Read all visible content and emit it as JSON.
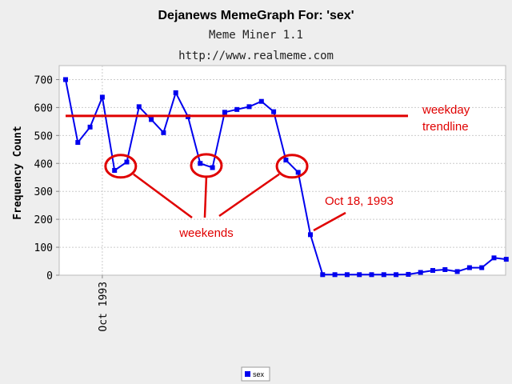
{
  "chart_data": {
    "type": "line",
    "title": "Dejanews MemeGraph For: 'sex'",
    "subtitle": "Meme Miner 1.1",
    "url": "http://www.realmeme.com",
    "ylabel": "Frequency Count",
    "xlabel": "",
    "ylim": [
      0,
      750
    ],
    "yticks": [
      0,
      100,
      200,
      300,
      400,
      500,
      600,
      700
    ],
    "x_tick_label": "Oct 1993",
    "x_tick_index": 3,
    "grid": true,
    "legend_position": "bottom-center",
    "series": [
      {
        "name": "sex",
        "color": "#0000ee",
        "values": [
          700,
          475,
          530,
          637,
          375,
          405,
          603,
          557,
          510,
          653,
          567,
          400,
          385,
          583,
          593,
          603,
          622,
          585,
          412,
          368,
          145,
          2,
          2,
          2,
          2,
          2,
          2,
          2,
          3,
          10,
          17,
          20,
          13,
          27,
          27,
          62,
          57
        ]
      }
    ],
    "trendline": {
      "label_line1": "weekday",
      "label_line2": "trendline",
      "value": 570,
      "color": "#e00000"
    },
    "annotations": {
      "weekends_label": "weekends",
      "weekend_indices": [
        [
          4,
          5
        ],
        [
          11,
          12
        ],
        [
          18,
          19
        ]
      ],
      "oct18_label": "Oct 18, 1993",
      "oct18_index": 20
    }
  }
}
